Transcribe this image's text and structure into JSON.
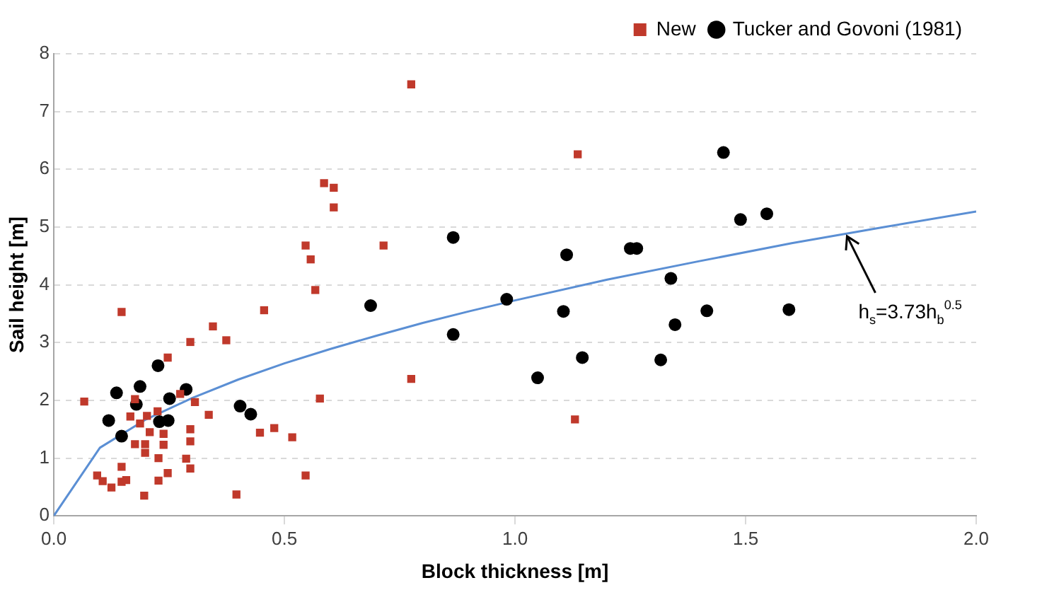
{
  "chart_data": {
    "type": "scatter",
    "xlabel": "Block thickness [m]",
    "ylabel": "Sail height [m]",
    "xlim": [
      0,
      2
    ],
    "xticks": [
      {
        "value": 0,
        "label": "0.0"
      },
      {
        "value": 0.5,
        "label": "0.5"
      },
      {
        "value": 1,
        "label": "1.0"
      },
      {
        "value": 1.5,
        "label": "1.5"
      },
      {
        "value": 2,
        "label": "2.0"
      }
    ],
    "ylim": [
      0,
      8
    ],
    "yticks": [
      0,
      1,
      2,
      3,
      4,
      5,
      6,
      7,
      8
    ],
    "grid": "y",
    "legend": "top right",
    "series": [
      {
        "name": "New",
        "color": "#c0392b",
        "marker": "square",
        "x": [
          0.147,
          0.066,
          0.247,
          0.296,
          0.345,
          0.374,
          0.456,
          0.567,
          0.577,
          0.176,
          0.274,
          0.306,
          0.336,
          0.166,
          0.202,
          0.225,
          0.187,
          0.208,
          0.238,
          0.238,
          0.296,
          0.296,
          0.176,
          0.198,
          0.198,
          0.227,
          0.287,
          0.296,
          0.247,
          0.147,
          0.094,
          0.106,
          0.125,
          0.147,
          0.157,
          0.227,
          0.196,
          0.396,
          0.447,
          0.478,
          0.517,
          0.546,
          0.775,
          1.136,
          0.586,
          0.607,
          0.607,
          0.546,
          0.557,
          0.715,
          0.775,
          1.13
        ],
        "values": [
          3.53,
          1.98,
          2.74,
          3.01,
          3.28,
          3.04,
          3.56,
          3.91,
          2.03,
          2.02,
          2.11,
          1.97,
          1.75,
          1.72,
          1.73,
          1.81,
          1.6,
          1.45,
          1.42,
          1.23,
          1.5,
          1.29,
          1.24,
          1.24,
          1.09,
          1.0,
          0.99,
          0.82,
          0.74,
          0.85,
          0.7,
          0.6,
          0.49,
          0.59,
          0.62,
          0.61,
          0.35,
          0.37,
          1.44,
          1.52,
          1.36,
          0.7,
          7.47,
          6.26,
          5.76,
          5.68,
          5.34,
          4.68,
          4.44,
          4.68,
          2.37,
          1.67
        ]
      },
      {
        "name": "Tucker and Govoni (1981)",
        "color": "#000000",
        "marker": "circle",
        "x": [
          0.136,
          0.187,
          0.226,
          0.179,
          0.251,
          0.287,
          0.119,
          0.147,
          0.229,
          0.248,
          0.404,
          0.427,
          0.866,
          0.687,
          0.982,
          1.112,
          1.105,
          0.866,
          1.049,
          1.146,
          1.316,
          1.338,
          1.347,
          1.452,
          1.489,
          1.546,
          1.25,
          1.264,
          1.594,
          1.416
        ],
        "values": [
          2.13,
          2.24,
          2.6,
          1.93,
          2.03,
          2.19,
          1.65,
          1.38,
          1.63,
          1.65,
          1.9,
          1.76,
          4.82,
          3.64,
          3.75,
          4.52,
          3.54,
          3.14,
          2.39,
          2.74,
          2.7,
          4.11,
          3.31,
          6.29,
          5.13,
          5.23,
          4.63,
          4.63,
          3.57,
          3.55
        ]
      },
      {
        "type": "line",
        "color": "#5b8fd4",
        "marker": "none",
        "x": [
          0,
          0.1,
          0.2,
          0.3,
          0.4,
          0.5,
          0.6,
          0.7,
          0.8,
          0.9,
          1.0,
          1.2,
          1.4,
          1.6,
          1.8,
          2.0
        ],
        "values": [
          0,
          1.18,
          1.67,
          2.04,
          2.36,
          2.64,
          2.89,
          3.12,
          3.34,
          3.54,
          3.73,
          4.09,
          4.41,
          4.72,
          5.0,
          5.27
        ]
      }
    ],
    "annotations": [
      {
        "text": "h$_{s}$=3.73h$_{b}$$^{0.5}$",
        "x": 1.72,
        "y": 4.89
      }
    ]
  }
}
